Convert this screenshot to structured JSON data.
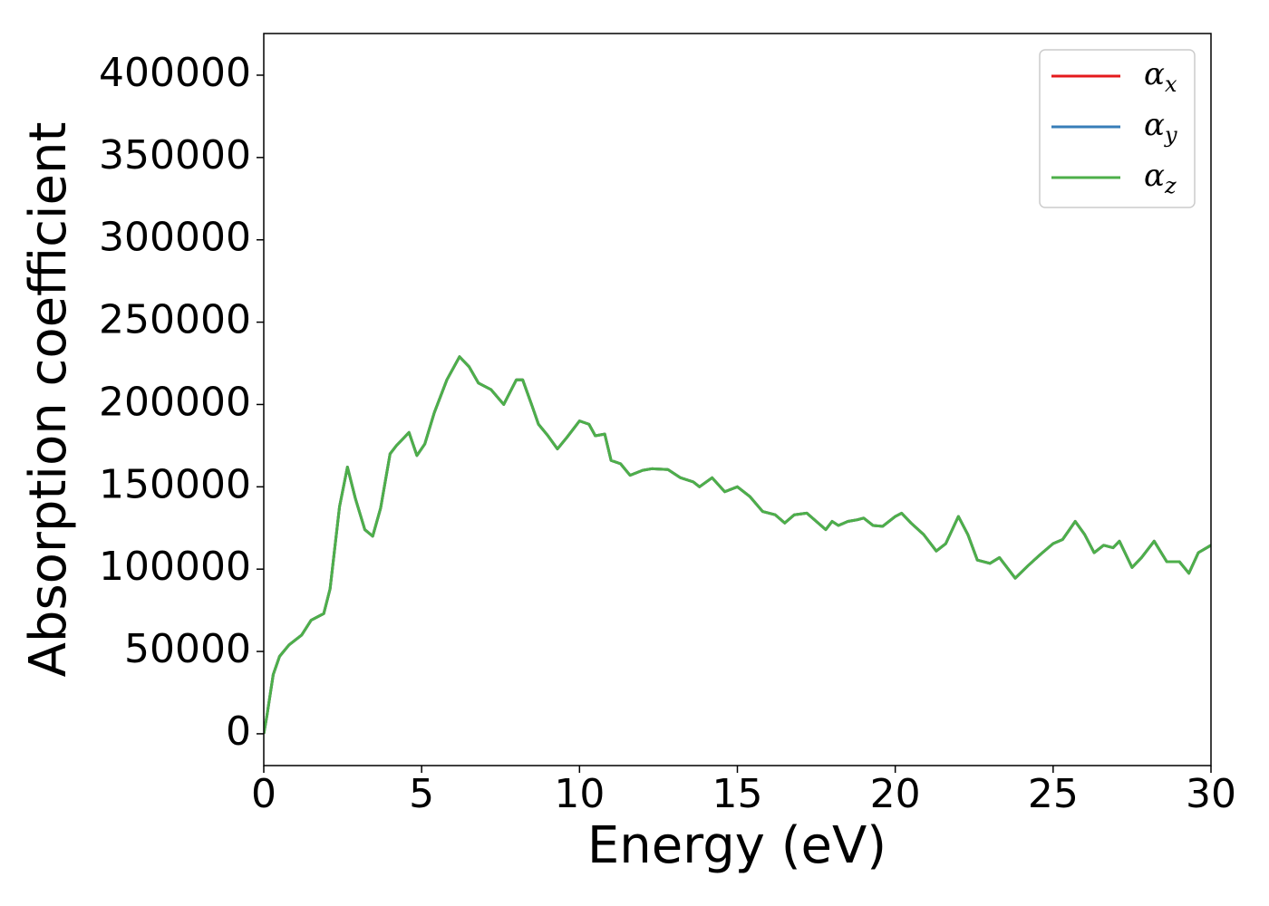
{
  "chart_data": {
    "type": "line",
    "xlabel": "Energy (eV)",
    "ylabel": "Absorption coefficient",
    "x": [
      0,
      0.1,
      0.3,
      0.5,
      0.8,
      1.2,
      1.5,
      1.9,
      2.1,
      2.4,
      2.65,
      2.9,
      3.2,
      3.45,
      3.7,
      4.0,
      4.2,
      4.4,
      4.6,
      4.85,
      5.1,
      5.4,
      5.8,
      6.2,
      6.5,
      6.8,
      7.2,
      7.6,
      8.0,
      8.2,
      8.5,
      8.7,
      9.0,
      9.3,
      9.6,
      10.0,
      10.3,
      10.5,
      10.8,
      11.0,
      11.3,
      11.6,
      12.0,
      12.3,
      12.8,
      13.2,
      13.6,
      13.8,
      14.2,
      14.6,
      15.0,
      15.4,
      15.8,
      16.2,
      16.5,
      16.8,
      17.2,
      17.5,
      17.8,
      18.0,
      18.2,
      18.5,
      18.8,
      19.0,
      19.3,
      19.6,
      20.0,
      20.2,
      20.5,
      20.9,
      21.3,
      21.6,
      22.0,
      22.3,
      22.6,
      23.0,
      23.3,
      23.8,
      24.2,
      24.6,
      25.0,
      25.3,
      25.7,
      26.0,
      26.3,
      26.6,
      26.9,
      27.1,
      27.5,
      27.8,
      28.2,
      28.6,
      29.0,
      29.3,
      29.6,
      30.0
    ],
    "series": [
      {
        "name": "αx",
        "color": "#e41a1c",
        "values": [
          0,
          11000,
          36000,
          47000,
          54000,
          60000,
          69000,
          73000,
          88000,
          138000,
          162000,
          143000,
          124000,
          120000,
          137000,
          170000,
          175000,
          179000,
          183000,
          169000,
          176000,
          195000,
          215000,
          229000,
          223000,
          213000,
          209000,
          200000,
          215000,
          215000,
          199000,
          188000,
          181000,
          173000,
          180000,
          190000,
          188000,
          181000,
          182000,
          166000,
          164000,
          157000,
          160000,
          161000,
          160500,
          155500,
          153000,
          150000,
          155500,
          147000,
          150000,
          144000,
          135000,
          133000,
          128000,
          133000,
          134000,
          129000,
          124000,
          129000,
          126500,
          129000,
          130000,
          131000,
          126500,
          126000,
          132000,
          134000,
          128000,
          121000,
          111000,
          115500,
          132000,
          121000,
          105500,
          103500,
          107000,
          94500,
          102000,
          109000,
          115500,
          118000,
          129000,
          121000,
          110000,
          114500,
          113000,
          117000,
          101000,
          107000,
          117000,
          104500,
          104500,
          97500,
          110000,
          114500
        ]
      },
      {
        "name": "αy",
        "color": "#377eb8",
        "values": [
          0,
          11000,
          36000,
          47000,
          54000,
          60000,
          69000,
          73000,
          88000,
          138000,
          162000,
          143000,
          124000,
          120000,
          137000,
          170000,
          175000,
          179000,
          183000,
          169000,
          176000,
          195000,
          215000,
          229000,
          223000,
          213000,
          209000,
          200000,
          215000,
          215000,
          199000,
          188000,
          181000,
          173000,
          180000,
          190000,
          188000,
          181000,
          182000,
          166000,
          164000,
          157000,
          160000,
          161000,
          160500,
          155500,
          153000,
          150000,
          155500,
          147000,
          150000,
          144000,
          135000,
          133000,
          128000,
          133000,
          134000,
          129000,
          124000,
          129000,
          126500,
          129000,
          130000,
          131000,
          126500,
          126000,
          132000,
          134000,
          128000,
          121000,
          111000,
          115500,
          132000,
          121000,
          105500,
          103500,
          107000,
          94500,
          102000,
          109000,
          115500,
          118000,
          129000,
          121000,
          110000,
          114500,
          113000,
          117000,
          101000,
          107000,
          117000,
          104500,
          104500,
          97500,
          110000,
          114500
        ]
      },
      {
        "name": "αz",
        "color": "#4daf4a",
        "values": [
          0,
          11000,
          36000,
          47000,
          54000,
          60000,
          69000,
          73000,
          88000,
          138000,
          162000,
          143000,
          124000,
          120000,
          137000,
          170000,
          175000,
          179000,
          183000,
          169000,
          176000,
          195000,
          215000,
          229000,
          223000,
          213000,
          209000,
          200000,
          215000,
          215000,
          199000,
          188000,
          181000,
          173000,
          180000,
          190000,
          188000,
          181000,
          182000,
          166000,
          164000,
          157000,
          160000,
          161000,
          160500,
          155500,
          153000,
          150000,
          155500,
          147000,
          150000,
          144000,
          135000,
          133000,
          128000,
          133000,
          134000,
          129000,
          124000,
          129000,
          126500,
          129000,
          130000,
          131000,
          126500,
          126000,
          132000,
          134000,
          128000,
          121000,
          111000,
          115500,
          132000,
          121000,
          105500,
          103500,
          107000,
          94500,
          102000,
          109000,
          115500,
          118000,
          129000,
          121000,
          110000,
          114500,
          113000,
          117000,
          101000,
          107000,
          117000,
          104500,
          104500,
          97500,
          110000,
          114500
        ]
      }
    ],
    "xlim": [
      0,
      30
    ],
    "xticks": [
      0,
      5,
      10,
      15,
      20,
      25,
      30
    ],
    "ylim": [
      -19300,
      425300
    ],
    "yticks": [
      0,
      50000,
      100000,
      150000,
      200000,
      250000,
      300000,
      350000,
      400000
    ],
    "grid": false,
    "legend": "upper right"
  }
}
